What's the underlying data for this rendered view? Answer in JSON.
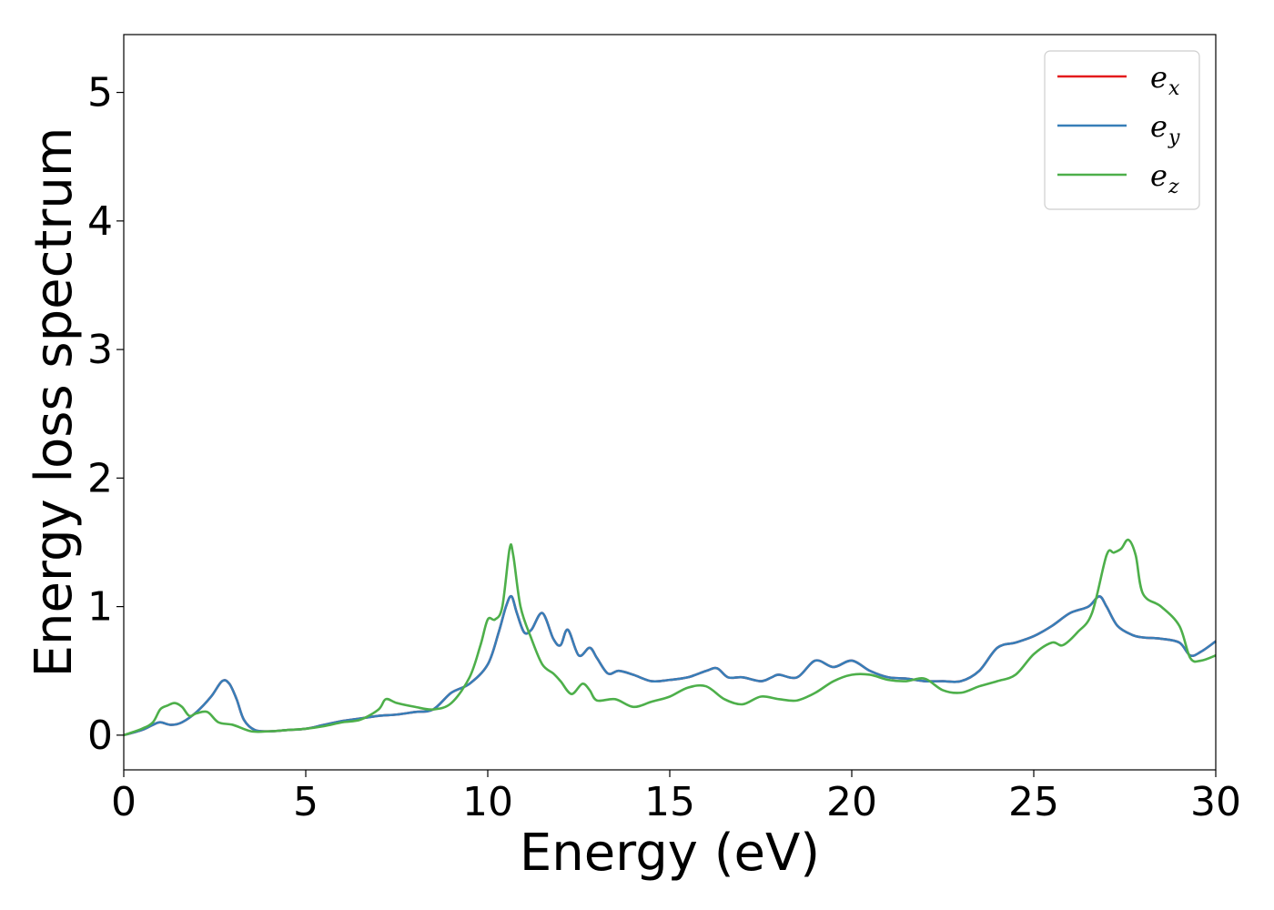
{
  "chart_data": {
    "type": "line",
    "title": "",
    "xlabel": "Energy (eV)",
    "ylabel": "Energy loss spectrum",
    "xlim": [
      0,
      30
    ],
    "ylim": [
      -0.27,
      5.45
    ],
    "xticks": [
      0,
      5,
      10,
      15,
      20,
      25,
      30
    ],
    "yticks": [
      0,
      1,
      2,
      3,
      4,
      5
    ],
    "grid": false,
    "legend_position": "top-right",
    "series": [
      {
        "name": "e_x",
        "base": "e",
        "sub": "x",
        "color": "#e41a1c",
        "x": [
          0,
          0.5,
          0.8,
          1.0,
          1.3,
          1.6,
          2.0,
          2.4,
          2.7,
          2.9,
          3.1,
          3.3,
          3.6,
          4.0,
          4.5,
          5.0,
          5.5,
          6.0,
          6.5,
          7.0,
          7.5,
          8.0,
          8.5,
          9.0,
          9.5,
          10.0,
          10.3,
          10.5,
          10.65,
          10.8,
          11.0,
          11.2,
          11.5,
          11.8,
          12.0,
          12.2,
          12.5,
          12.8,
          13.0,
          13.3,
          13.6,
          14.0,
          14.5,
          15.0,
          15.5,
          16.0,
          16.3,
          16.6,
          17.0,
          17.5,
          17.8,
          18.0,
          18.5,
          19.0,
          19.5,
          20.0,
          20.5,
          21.0,
          21.5,
          22.0,
          22.5,
          23.0,
          23.5,
          24.0,
          24.5,
          25.0,
          25.5,
          26.0,
          26.5,
          26.8,
          27.0,
          27.3,
          27.7,
          28.0,
          28.5,
          29.0,
          29.3,
          29.6,
          30.0
        ],
        "y": [
          0,
          0.04,
          0.08,
          0.1,
          0.08,
          0.1,
          0.18,
          0.3,
          0.42,
          0.4,
          0.28,
          0.12,
          0.04,
          0.03,
          0.04,
          0.05,
          0.08,
          0.11,
          0.13,
          0.15,
          0.16,
          0.18,
          0.2,
          0.33,
          0.4,
          0.55,
          0.8,
          1.0,
          1.08,
          0.95,
          0.8,
          0.82,
          0.95,
          0.75,
          0.7,
          0.82,
          0.62,
          0.68,
          0.6,
          0.48,
          0.5,
          0.47,
          0.42,
          0.43,
          0.45,
          0.5,
          0.52,
          0.45,
          0.45,
          0.42,
          0.45,
          0.47,
          0.45,
          0.58,
          0.53,
          0.58,
          0.5,
          0.45,
          0.44,
          0.42,
          0.42,
          0.42,
          0.5,
          0.68,
          0.72,
          0.77,
          0.85,
          0.95,
          1.0,
          1.08,
          1.0,
          0.85,
          0.78,
          0.76,
          0.75,
          0.72,
          0.62,
          0.65,
          0.73
        ]
      },
      {
        "name": "e_y",
        "base": "e",
        "sub": "y",
        "color": "#377eb8",
        "x": [
          0,
          0.5,
          0.8,
          1.0,
          1.3,
          1.6,
          2.0,
          2.4,
          2.7,
          2.9,
          3.1,
          3.3,
          3.6,
          4.0,
          4.5,
          5.0,
          5.5,
          6.0,
          6.5,
          7.0,
          7.5,
          8.0,
          8.5,
          9.0,
          9.5,
          10.0,
          10.3,
          10.5,
          10.65,
          10.8,
          11.0,
          11.2,
          11.5,
          11.8,
          12.0,
          12.2,
          12.5,
          12.8,
          13.0,
          13.3,
          13.6,
          14.0,
          14.5,
          15.0,
          15.5,
          16.0,
          16.3,
          16.6,
          17.0,
          17.5,
          17.8,
          18.0,
          18.5,
          19.0,
          19.5,
          20.0,
          20.5,
          21.0,
          21.5,
          22.0,
          22.5,
          23.0,
          23.5,
          24.0,
          24.5,
          25.0,
          25.5,
          26.0,
          26.5,
          26.8,
          27.0,
          27.3,
          27.7,
          28.0,
          28.5,
          29.0,
          29.3,
          29.6,
          30.0
        ],
        "y": [
          0,
          0.04,
          0.08,
          0.1,
          0.08,
          0.1,
          0.18,
          0.3,
          0.42,
          0.4,
          0.28,
          0.12,
          0.04,
          0.03,
          0.04,
          0.05,
          0.08,
          0.11,
          0.13,
          0.15,
          0.16,
          0.18,
          0.2,
          0.33,
          0.4,
          0.55,
          0.8,
          1.0,
          1.08,
          0.95,
          0.8,
          0.82,
          0.95,
          0.75,
          0.7,
          0.82,
          0.62,
          0.68,
          0.6,
          0.48,
          0.5,
          0.47,
          0.42,
          0.43,
          0.45,
          0.5,
          0.52,
          0.45,
          0.45,
          0.42,
          0.45,
          0.47,
          0.45,
          0.58,
          0.53,
          0.58,
          0.5,
          0.45,
          0.44,
          0.42,
          0.42,
          0.42,
          0.5,
          0.68,
          0.72,
          0.77,
          0.85,
          0.95,
          1.0,
          1.08,
          1.0,
          0.85,
          0.78,
          0.76,
          0.75,
          0.72,
          0.62,
          0.65,
          0.73
        ]
      },
      {
        "name": "e_z",
        "base": "e",
        "sub": "z",
        "color": "#4daf4a",
        "x": [
          0,
          0.5,
          0.8,
          1.0,
          1.2,
          1.4,
          1.6,
          1.8,
          2.0,
          2.3,
          2.6,
          3.0,
          3.5,
          4.0,
          4.5,
          5.0,
          5.5,
          6.0,
          6.5,
          7.0,
          7.2,
          7.5,
          8.0,
          8.5,
          9.0,
          9.5,
          9.8,
          10.0,
          10.2,
          10.4,
          10.6,
          10.7,
          10.9,
          11.2,
          11.5,
          11.8,
          12.0,
          12.3,
          12.6,
          12.8,
          13.0,
          13.5,
          14.0,
          14.5,
          15.0,
          15.5,
          16.0,
          16.5,
          17.0,
          17.5,
          18.0,
          18.5,
          19.0,
          19.5,
          20.0,
          20.5,
          21.0,
          21.5,
          22.0,
          22.5,
          23.0,
          23.5,
          24.0,
          24.5,
          25.0,
          25.5,
          25.8,
          26.2,
          26.6,
          27.0,
          27.2,
          27.4,
          27.6,
          27.8,
          28.0,
          28.5,
          29.0,
          29.3,
          29.6,
          30.0
        ],
        "y": [
          0,
          0.05,
          0.1,
          0.2,
          0.23,
          0.25,
          0.22,
          0.15,
          0.17,
          0.18,
          0.1,
          0.08,
          0.03,
          0.03,
          0.04,
          0.05,
          0.07,
          0.1,
          0.12,
          0.2,
          0.28,
          0.25,
          0.22,
          0.2,
          0.25,
          0.45,
          0.7,
          0.9,
          0.9,
          1.0,
          1.45,
          1.4,
          1.0,
          0.75,
          0.55,
          0.48,
          0.42,
          0.32,
          0.4,
          0.35,
          0.27,
          0.28,
          0.22,
          0.26,
          0.3,
          0.37,
          0.38,
          0.28,
          0.24,
          0.3,
          0.28,
          0.27,
          0.33,
          0.42,
          0.47,
          0.47,
          0.43,
          0.42,
          0.44,
          0.35,
          0.33,
          0.38,
          0.42,
          0.47,
          0.63,
          0.72,
          0.7,
          0.8,
          0.95,
          1.4,
          1.42,
          1.45,
          1.52,
          1.4,
          1.1,
          1.0,
          0.85,
          0.6,
          0.58,
          0.62
        ]
      }
    ]
  }
}
